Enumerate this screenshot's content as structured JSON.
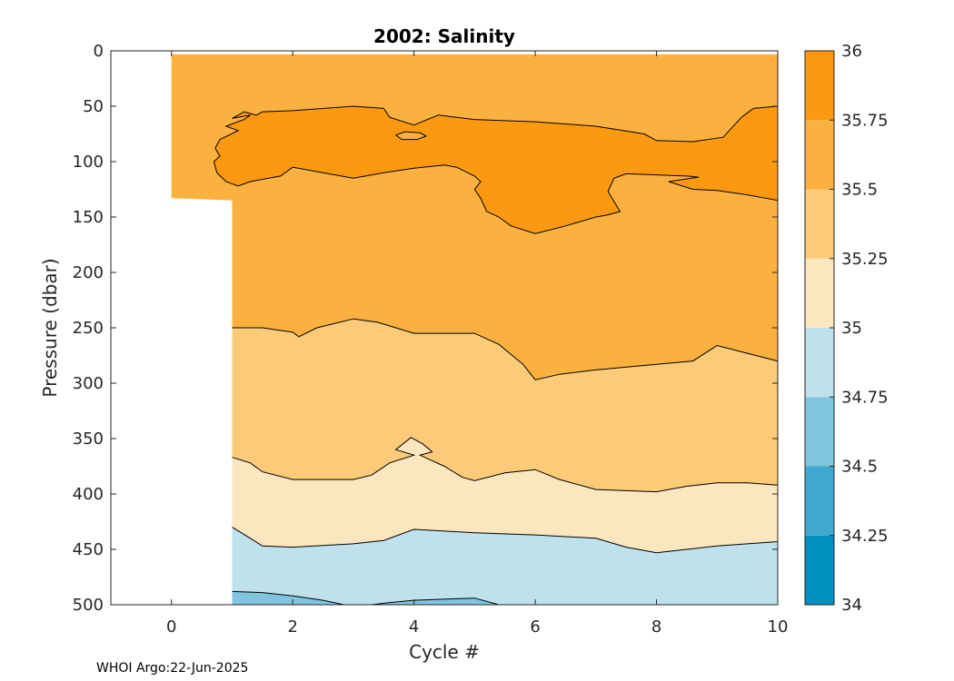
{
  "chart_data": {
    "type": "contourf",
    "title": "2002:  Salinity",
    "xlabel": "Cycle #",
    "ylabel": "Pressure (dbar)",
    "xlim": [
      -1,
      10
    ],
    "ylim": [
      500,
      0
    ],
    "y_reversed": true,
    "xticks": [
      0,
      2,
      4,
      6,
      8,
      10
    ],
    "yticks": [
      0,
      50,
      100,
      150,
      200,
      250,
      300,
      350,
      400,
      450,
      500
    ],
    "colorbar": {
      "range": [
        34,
        36
      ],
      "ticks": [
        34,
        34.25,
        34.5,
        34.75,
        35,
        35.25,
        35.5,
        35.75,
        36
      ],
      "tick_labels": [
        "34",
        "34.25",
        "34.5",
        "34.75",
        "35",
        "35.25",
        "35.5",
        "35.75",
        "36"
      ],
      "levels": [
        {
          "range": [
            34.0,
            34.25
          ],
          "color": "#0191c0"
        },
        {
          "range": [
            34.25,
            34.5
          ],
          "color": "#41a9cf"
        },
        {
          "range": [
            34.5,
            34.75
          ],
          "color": "#80c4de"
        },
        {
          "range": [
            34.75,
            35.0
          ],
          "color": "#bfe1ec"
        },
        {
          "range": [
            35.0,
            35.25
          ],
          "color": "#fce6bf"
        },
        {
          "range": [
            35.25,
            35.5
          ],
          "color": "#fbcb7a"
        },
        {
          "range": [
            35.5,
            35.75
          ],
          "color": "#fbb13f"
        },
        {
          "range": [
            35.75,
            36.0
          ],
          "color": "#fb9a10"
        }
      ]
    },
    "data_coverage": [
      {
        "x_from": 0,
        "x_to": 1,
        "pressure_max": 133
      },
      {
        "x_from": 1,
        "x_to": 10,
        "pressure_max": 500
      }
    ],
    "bands": [
      {
        "level_color": "#fb9a10",
        "approx_pressure_top": [
          [
            0.7,
            88
          ],
          [
            1.2,
            60
          ],
          [
            3,
            48
          ],
          [
            4,
            60
          ],
          [
            6,
            58
          ],
          [
            8,
            75
          ],
          [
            9.5,
            50
          ],
          [
            10,
            50
          ]
        ],
        "approx_pressure_bottom": [
          [
            0.7,
            90
          ],
          [
            1.2,
            120
          ],
          [
            2,
            105
          ],
          [
            3,
            115
          ],
          [
            4,
            103
          ],
          [
            5,
            115
          ],
          [
            6,
            165
          ],
          [
            7,
            145
          ],
          [
            8,
            110
          ],
          [
            9,
            125
          ],
          [
            10,
            135
          ]
        ]
      },
      {
        "level_color": "#fbb13f",
        "approx_pressure_bottom": [
          [
            1,
            250
          ],
          [
            2,
            258
          ],
          [
            3,
            242
          ],
          [
            4,
            255
          ],
          [
            5,
            255
          ],
          [
            6,
            297
          ],
          [
            8,
            283
          ],
          [
            9,
            266
          ],
          [
            10,
            280
          ]
        ]
      },
      {
        "level_color": "#fbcb7a",
        "approx_pressure_bottom": [
          [
            1,
            367
          ],
          [
            2,
            387
          ],
          [
            3,
            387
          ],
          [
            4,
            350
          ],
          [
            5,
            388
          ],
          [
            6,
            378
          ],
          [
            7,
            396
          ],
          [
            8,
            398
          ],
          [
            9,
            390
          ],
          [
            10,
            392
          ]
        ]
      },
      {
        "level_color": "#fce6bf",
        "approx_pressure_bottom": [
          [
            1,
            430
          ],
          [
            2,
            448
          ],
          [
            3,
            445
          ],
          [
            4,
            432
          ],
          [
            6,
            437
          ],
          [
            7,
            440
          ],
          [
            8,
            453
          ],
          [
            9,
            447
          ],
          [
            10,
            443
          ]
        ]
      },
      {
        "level_color": "#bfe1ec",
        "approx_pressure_bottom": [
          [
            1,
            488
          ],
          [
            2,
            492
          ],
          [
            3,
            500
          ],
          [
            4,
            496
          ],
          [
            5,
            494
          ],
          [
            5.5,
            500
          ]
        ]
      }
    ]
  },
  "footer": {
    "text": "WHOI Argo:22-Jun-2025"
  }
}
